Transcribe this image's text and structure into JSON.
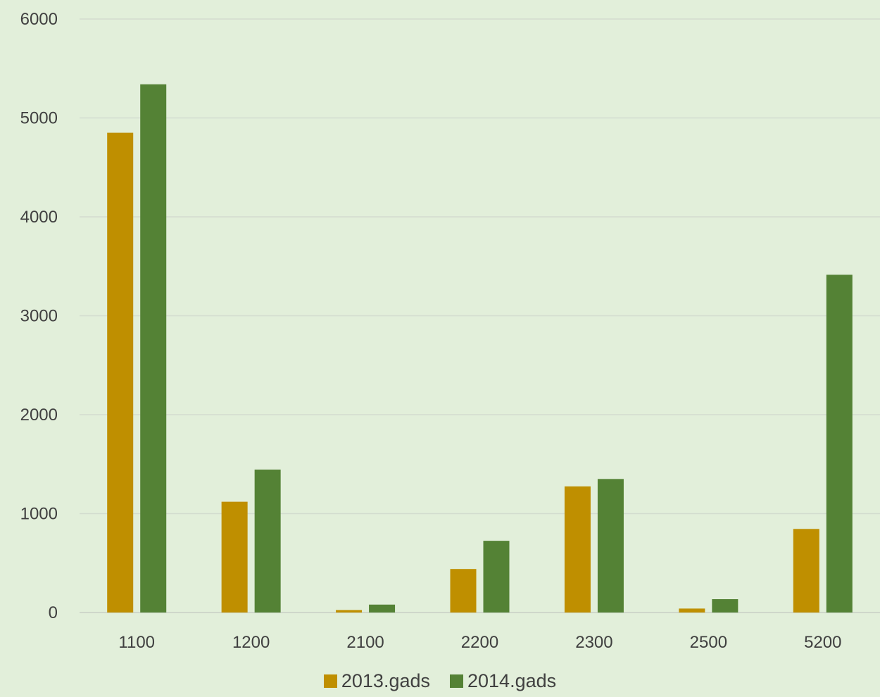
{
  "chart_data": {
    "type": "bar",
    "categories": [
      "1100",
      "1200",
      "2100",
      "2200",
      "2300",
      "2500",
      "5200"
    ],
    "series": [
      {
        "name": "2013.gads",
        "values": [
          4850,
          1120,
          25,
          440,
          1275,
          40,
          845
        ],
        "color": "#bf8f00"
      },
      {
        "name": "2014.gads",
        "values": [
          5340,
          1445,
          80,
          725,
          1350,
          135,
          3415
        ],
        "color": "#548235"
      }
    ],
    "ylim": [
      0,
      6000
    ],
    "yticks": [
      0,
      1000,
      2000,
      3000,
      4000,
      5000,
      6000
    ],
    "grid": true,
    "legend": "bottom"
  }
}
